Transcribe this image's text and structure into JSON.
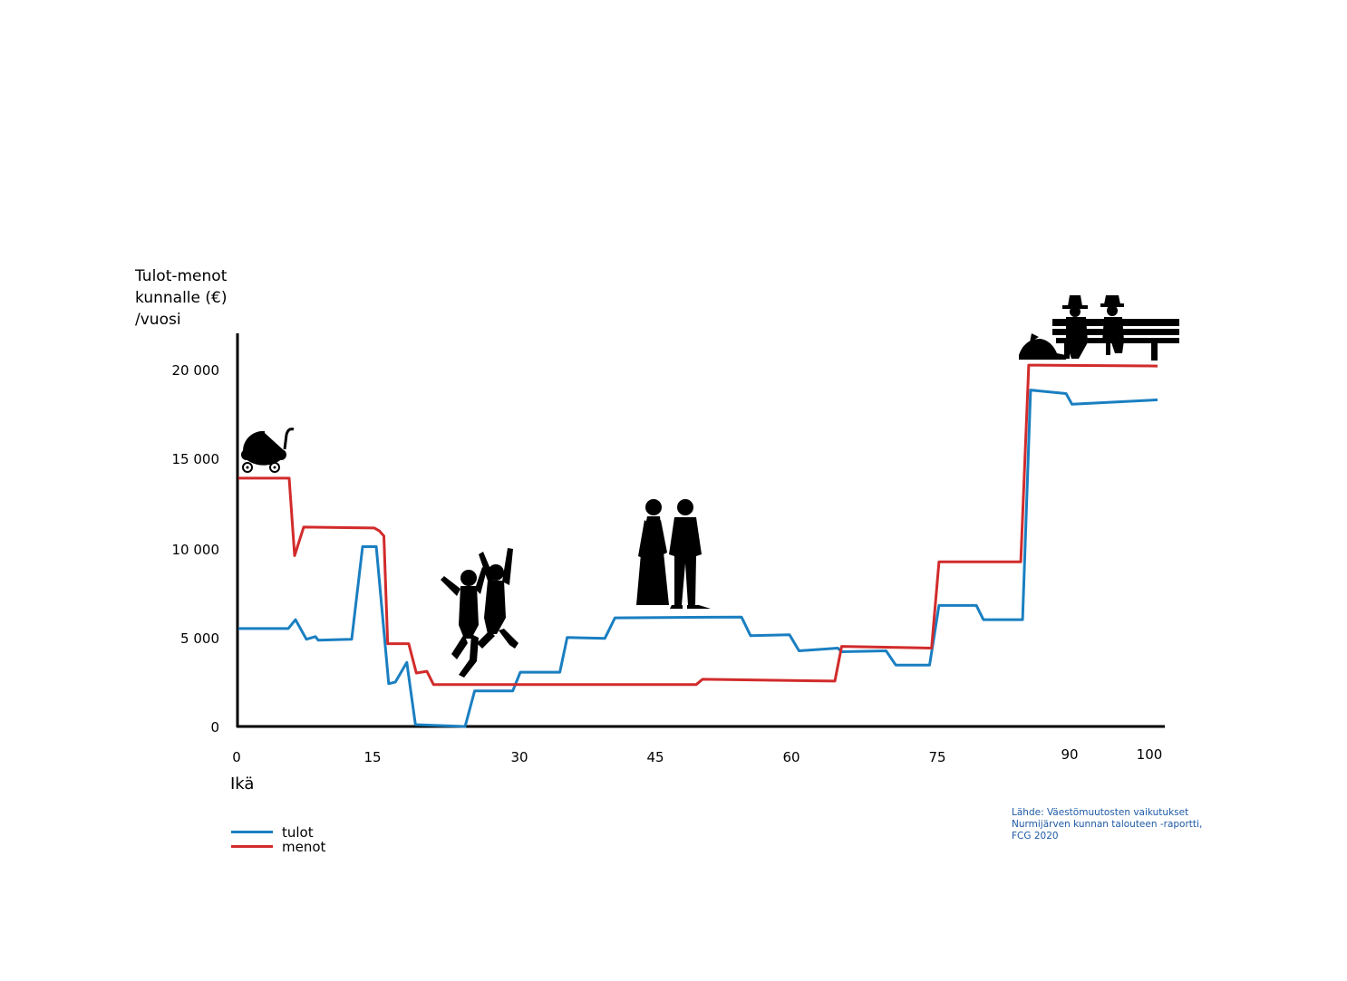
{
  "chart_data": {
    "type": "line",
    "ylabel_lines": [
      "Tulot-menot",
      "kunnalle (€)",
      "/vuosi"
    ],
    "xlabel": "Ikä",
    "x_ticks": [
      {
        "value": 0,
        "label": "0"
      },
      {
        "value": 15,
        "label": "15"
      },
      {
        "value": 30,
        "label": "30"
      },
      {
        "value": 45,
        "label": "45"
      },
      {
        "value": 60,
        "label": "60"
      },
      {
        "value": 75,
        "label": "75"
      },
      {
        "value": 90,
        "label": "90"
      },
      {
        "value": 100,
        "label": "100"
      }
    ],
    "y_ticks": [
      {
        "value": 0,
        "label": "0"
      },
      {
        "value": 5000,
        "label": "5 000"
      },
      {
        "value": 10000,
        "label": "10 000"
      },
      {
        "value": 15000,
        "label": "15 000"
      },
      {
        "value": 20000,
        "label": "20 000"
      }
    ],
    "xlim": [
      0,
      102
    ],
    "ylim": [
      0,
      22000
    ],
    "grid": false,
    "legend_position": "bottom-left",
    "series": [
      {
        "name": "tulot",
        "color": "#1a7fc1",
        "points": [
          [
            0,
            5500
          ],
          [
            5.5,
            5500
          ],
          [
            6.3,
            6000
          ],
          [
            7.5,
            4900
          ],
          [
            8.5,
            5050
          ],
          [
            8.8,
            4850
          ],
          [
            12.5,
            4900
          ],
          [
            13.7,
            10100
          ],
          [
            15.2,
            10100
          ],
          [
            16.5,
            2400
          ],
          [
            17.2,
            2500
          ],
          [
            18.4,
            3600
          ],
          [
            19.3,
            100
          ],
          [
            24.5,
            0
          ],
          [
            25.5,
            2000
          ],
          [
            29.5,
            2000
          ],
          [
            30.3,
            3050
          ],
          [
            34.6,
            3050
          ],
          [
            35.4,
            5000
          ],
          [
            39.5,
            4950
          ],
          [
            40.6,
            6100
          ],
          [
            54.5,
            6150
          ],
          [
            55.5,
            5100
          ],
          [
            59.8,
            5150
          ],
          [
            60.8,
            4250
          ],
          [
            64.8,
            4400
          ],
          [
            65.2,
            4200
          ],
          [
            69.8,
            4250
          ],
          [
            70.8,
            3450
          ],
          [
            74.3,
            3450
          ],
          [
            75.3,
            6800
          ],
          [
            79.5,
            6800
          ],
          [
            80.3,
            6000
          ],
          [
            84.7,
            6000
          ],
          [
            85.6,
            18900
          ],
          [
            89.6,
            18700
          ],
          [
            90.3,
            18100
          ],
          [
            101,
            18350
          ]
        ]
      },
      {
        "name": "menot",
        "color": "#d22b2b",
        "points": [
          [
            0,
            13950
          ],
          [
            5.6,
            13950
          ],
          [
            6.2,
            9600
          ],
          [
            7.2,
            11200
          ],
          [
            15.0,
            11150
          ],
          [
            15.5,
            11000
          ],
          [
            16.0,
            10700
          ],
          [
            16.4,
            4650
          ],
          [
            18.6,
            4650
          ],
          [
            19.4,
            3000
          ],
          [
            20.5,
            3100
          ],
          [
            21.2,
            2350
          ],
          [
            49.5,
            2350
          ],
          [
            50.2,
            2650
          ],
          [
            64.5,
            2550
          ],
          [
            65.2,
            4500
          ],
          [
            74.5,
            4400
          ],
          [
            75.3,
            9250
          ],
          [
            84.5,
            9250
          ],
          [
            85.4,
            20300
          ],
          [
            101,
            20250
          ]
        ]
      }
    ]
  },
  "legend": {
    "items": [
      {
        "label": "tulot",
        "color": "#1a7fc1"
      },
      {
        "label": "menot",
        "color": "#d22b2b"
      }
    ]
  },
  "source": {
    "lines": [
      "Lähde: Väestömuutosten vaikutukset",
      "Nurmijärven kunnan talouteen -raportti,",
      "FCG 2020"
    ],
    "color": "#1f5aa6"
  },
  "icons": [
    "baby-carriage-icon",
    "jumping-youth-icon",
    "couple-icon",
    "elderly-bench-icon"
  ]
}
